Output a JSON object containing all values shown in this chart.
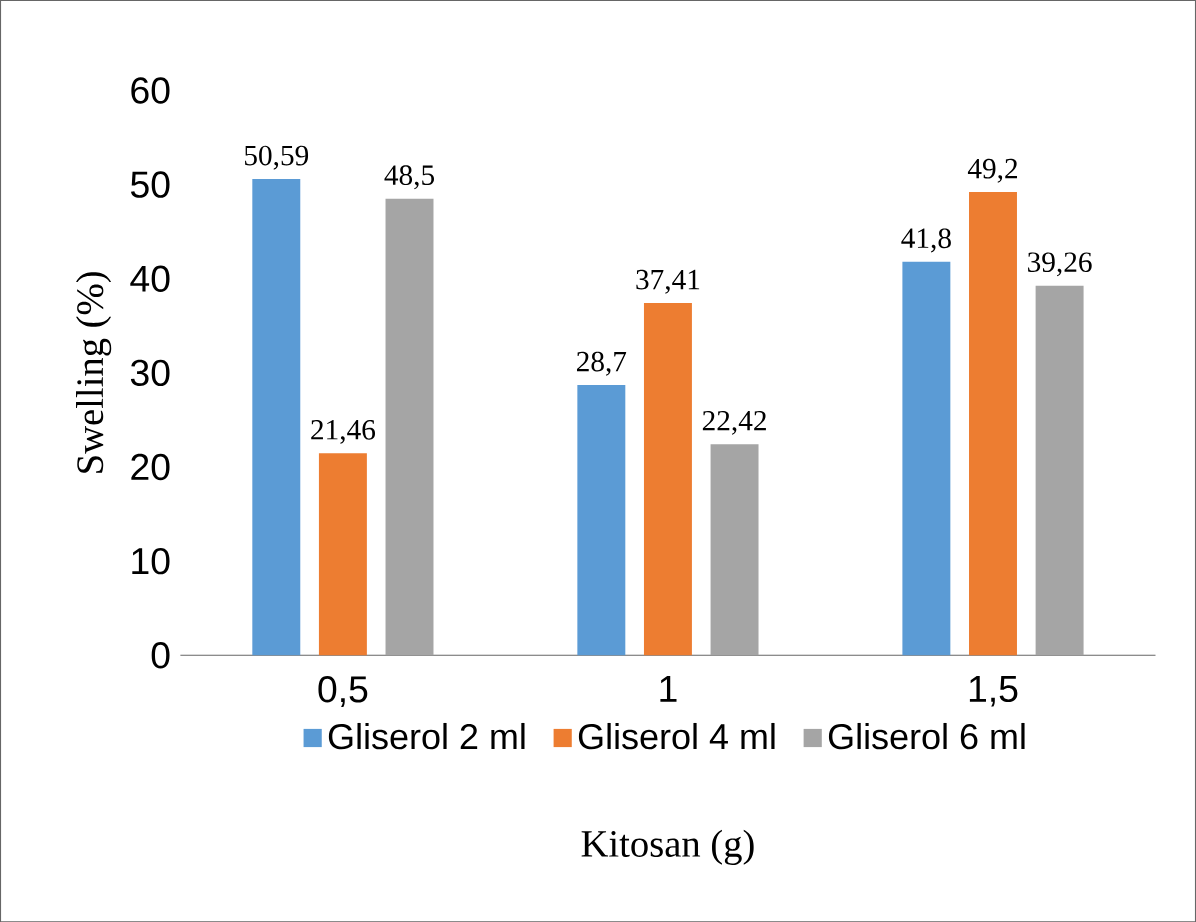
{
  "chart_data": {
    "type": "bar",
    "xlabel": "Kitosan (g)",
    "ylabel": "Swelling (%)",
    "categories": [
      "0,5",
      "1",
      "1,5"
    ],
    "series": [
      {
        "name": "Gliserol 2 ml",
        "color": "#5b9bd5",
        "values": [
          50.59,
          28.7,
          41.8
        ],
        "value_labels": [
          "50,59",
          "28,7",
          "41,8"
        ]
      },
      {
        "name": "Gliserol 4 ml",
        "color": "#ed7d31",
        "values": [
          21.46,
          37.41,
          49.2
        ],
        "value_labels": [
          "21,46",
          "37,41",
          "49,2"
        ]
      },
      {
        "name": "Gliserol 6 ml",
        "color": "#a5a5a5",
        "values": [
          48.5,
          22.42,
          39.26
        ],
        "value_labels": [
          "48,5",
          "22,42",
          "39,26"
        ]
      }
    ],
    "ylim": [
      0,
      60
    ],
    "yticks": [
      0,
      10,
      20,
      30,
      40,
      50,
      60
    ],
    "grid": false,
    "legend": "bottom"
  }
}
